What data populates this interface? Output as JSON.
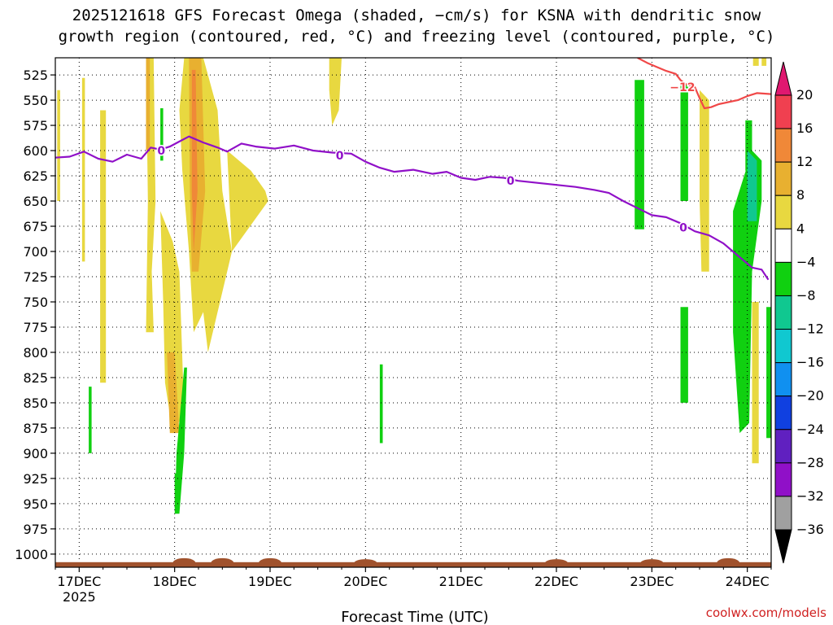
{
  "title": {
    "line1": "2025121618 GFS Forecast Omega (shaded, −cm/s) for KSNA with dendritic snow",
    "line2": "growth region (contoured, red, °C) and freezing level (contoured, purple, °C)"
  },
  "credit": "coolwx.com/models",
  "chart_data": {
    "type": "heatmap",
    "xlabel": "Forecast Time (UTC)",
    "ylabel": "",
    "x_ticks": [
      {
        "value": 0,
        "label": "17DEC",
        "sublabel": "2025"
      },
      {
        "value": 1,
        "label": "18DEC",
        "sublabel": ""
      },
      {
        "value": 2,
        "label": "19DEC",
        "sublabel": ""
      },
      {
        "value": 3,
        "label": "20DEC",
        "sublabel": ""
      },
      {
        "value": 4,
        "label": "21DEC",
        "sublabel": ""
      },
      {
        "value": 5,
        "label": "22DEC",
        "sublabel": ""
      },
      {
        "value": 6,
        "label": "23DEC",
        "sublabel": ""
      },
      {
        "value": 7,
        "label": "24DEC",
        "sublabel": ""
      }
    ],
    "x_range_days": [
      -0.25,
      7.25
    ],
    "y_ticks": [
      525,
      550,
      575,
      600,
      625,
      650,
      675,
      700,
      725,
      750,
      775,
      800,
      825,
      850,
      875,
      900,
      925,
      950,
      975,
      1000
    ],
    "y_range_hpa": [
      508,
      1013
    ],
    "grid": true,
    "colorbar": {
      "labels": [
        "20",
        "16",
        "12",
        "8",
        "4",
        "−4",
        "−8",
        "−12",
        "−16",
        "−20",
        "−24",
        "−28",
        "−32",
        "−36"
      ],
      "colors": [
        "#f04050",
        "#f08838",
        "#e8b030",
        "#e8d840",
        "#ffffff",
        "#10d010",
        "#10c890",
        "#10c8d0",
        "#1090f0",
        "#1040e0",
        "#6020c0",
        "#9010c8",
        "#a0a0a0"
      ],
      "top_arrow_color": "#e01870",
      "bottom_arrow_color": "#000000"
    },
    "freezing_level": {
      "label": "0",
      "color": "#9010c8",
      "points": [
        [
          -0.25,
          607
        ],
        [
          -0.1,
          606
        ],
        [
          0.05,
          601
        ],
        [
          0.2,
          608
        ],
        [
          0.35,
          611
        ],
        [
          0.5,
          604
        ],
        [
          0.65,
          608
        ],
        [
          0.75,
          597
        ],
        [
          0.85,
          599
        ],
        [
          0.95,
          596
        ],
        [
          1.05,
          591
        ],
        [
          1.15,
          586
        ],
        [
          1.3,
          592
        ],
        [
          1.45,
          597
        ],
        [
          1.55,
          601
        ],
        [
          1.7,
          593
        ],
        [
          1.85,
          596
        ],
        [
          2.05,
          598
        ],
        [
          2.25,
          595
        ],
        [
          2.45,
          600
        ],
        [
          2.65,
          602
        ],
        [
          2.85,
          603
        ],
        [
          3.0,
          611
        ],
        [
          3.15,
          617
        ],
        [
          3.3,
          621
        ],
        [
          3.5,
          619
        ],
        [
          3.7,
          623
        ],
        [
          3.85,
          621
        ],
        [
          4.0,
          627
        ],
        [
          4.15,
          629
        ],
        [
          4.3,
          626
        ],
        [
          4.45,
          627
        ],
        [
          4.6,
          630
        ],
        [
          4.8,
          632
        ],
        [
          5.0,
          634
        ],
        [
          5.2,
          636
        ],
        [
          5.4,
          639
        ],
        [
          5.55,
          642
        ],
        [
          5.7,
          650
        ],
        [
          5.85,
          657
        ],
        [
          6.0,
          664
        ],
        [
          6.15,
          666
        ],
        [
          6.3,
          672
        ],
        [
          6.45,
          680
        ],
        [
          6.6,
          684
        ],
        [
          6.75,
          692
        ],
        [
          6.9,
          704
        ],
        [
          7.05,
          716
        ],
        [
          7.15,
          718
        ],
        [
          7.22,
          728
        ]
      ],
      "label_positions": [
        [
          0.86,
          600
        ],
        [
          2.73,
          605
        ],
        [
          4.52,
          630
        ],
        [
          6.33,
          676
        ]
      ]
    },
    "dgz_minus12": {
      "label": "−12",
      "color": "#f04848",
      "points": [
        [
          5.85,
          508
        ],
        [
          5.95,
          513
        ],
        [
          6.05,
          517
        ],
        [
          6.15,
          521
        ],
        [
          6.25,
          524
        ],
        [
          6.3,
          530
        ],
        [
          6.35,
          534
        ],
        [
          6.45,
          537
        ],
        [
          6.5,
          548
        ],
        [
          6.55,
          558
        ],
        [
          6.62,
          557
        ],
        [
          6.7,
          554
        ],
        [
          6.8,
          552
        ],
        [
          6.9,
          550
        ],
        [
          7.0,
          546
        ],
        [
          7.1,
          543
        ],
        [
          7.25,
          544
        ]
      ],
      "label_positions": [
        [
          6.32,
          537
        ]
      ]
    },
    "omega_regions": [
      {
        "value": 6,
        "poly": [
          [
            -0.23,
            540
          ],
          [
            -0.2,
            540
          ],
          [
            -0.2,
            650
          ],
          [
            -0.23,
            650
          ]
        ]
      },
      {
        "value": 6,
        "poly": [
          [
            0.03,
            528
          ],
          [
            0.06,
            528
          ],
          [
            0.06,
            710
          ],
          [
            0.03,
            710
          ]
        ]
      },
      {
        "value": 6,
        "poly": [
          [
            0.22,
            560
          ],
          [
            0.28,
            560
          ],
          [
            0.28,
            830
          ],
          [
            0.22,
            830
          ]
        ]
      },
      {
        "value": 6,
        "poly": [
          [
            0.7,
            508
          ],
          [
            0.78,
            508
          ],
          [
            0.8,
            650
          ],
          [
            0.76,
            720
          ],
          [
            0.78,
            780
          ],
          [
            0.7,
            780
          ],
          [
            0.72,
            650
          ]
        ]
      },
      {
        "value": 6,
        "poly": [
          [
            0.85,
            660
          ],
          [
            0.98,
            690
          ],
          [
            1.05,
            720
          ],
          [
            1.1,
            860
          ],
          [
            0.98,
            880
          ],
          [
            0.9,
            830
          ],
          [
            0.88,
            750
          ]
        ]
      },
      {
        "value": 6,
        "poly": [
          [
            1.1,
            508
          ],
          [
            1.3,
            508
          ],
          [
            1.45,
            560
          ],
          [
            1.5,
            640
          ],
          [
            1.6,
            700
          ],
          [
            1.45,
            760
          ],
          [
            1.35,
            800
          ],
          [
            1.3,
            760
          ],
          [
            1.2,
            780
          ],
          [
            1.15,
            700
          ],
          [
            1.08,
            620
          ],
          [
            1.05,
            560
          ]
        ]
      },
      {
        "value": 6,
        "poly": [
          [
            1.55,
            600
          ],
          [
            1.8,
            620
          ],
          [
            1.95,
            640
          ],
          [
            1.98,
            650
          ],
          [
            1.6,
            700
          ]
        ]
      },
      {
        "value": 6,
        "poly": [
          [
            2.62,
            508
          ],
          [
            2.75,
            508
          ],
          [
            2.72,
            560
          ],
          [
            2.65,
            575
          ],
          [
            2.62,
            540
          ]
        ]
      },
      {
        "value": 6,
        "poly": [
          [
            6.5,
            540
          ],
          [
            6.6,
            550
          ],
          [
            6.6,
            720
          ],
          [
            6.52,
            720
          ],
          [
            6.5,
            650
          ]
        ]
      },
      {
        "value": 6,
        "poly": [
          [
            7.06,
            508
          ],
          [
            7.12,
            508
          ],
          [
            7.12,
            516
          ],
          [
            7.06,
            516
          ]
        ]
      },
      {
        "value": 6,
        "poly": [
          [
            7.15,
            508
          ],
          [
            7.2,
            508
          ],
          [
            7.2,
            516
          ],
          [
            7.15,
            516
          ]
        ]
      },
      {
        "value": 6,
        "poly": [
          [
            7.05,
            750
          ],
          [
            7.12,
            750
          ],
          [
            7.12,
            910
          ],
          [
            7.05,
            910
          ]
        ]
      },
      {
        "value": 10,
        "poly": [
          [
            1.15,
            508
          ],
          [
            1.28,
            508
          ],
          [
            1.32,
            640
          ],
          [
            1.25,
            720
          ],
          [
            1.18,
            720
          ],
          [
            1.16,
            640
          ]
        ]
      },
      {
        "value": 10,
        "poly": [
          [
            0.7,
            508
          ],
          [
            0.74,
            508
          ],
          [
            0.74,
            600
          ],
          [
            0.7,
            600
          ]
        ]
      },
      {
        "value": 10,
        "poly": [
          [
            0.92,
            800
          ],
          [
            1.0,
            800
          ],
          [
            1.05,
            880
          ],
          [
            0.95,
            880
          ]
        ]
      },
      {
        "value": 14,
        "poly": [
          [
            1.18,
            520
          ],
          [
            1.22,
            520
          ],
          [
            1.24,
            640
          ],
          [
            1.2,
            700
          ],
          [
            1.18,
            640
          ]
        ]
      },
      {
        "value": -6,
        "poly": [
          [
            0.85,
            558
          ],
          [
            0.88,
            558
          ],
          [
            0.88,
            610
          ],
          [
            0.85,
            610
          ]
        ]
      },
      {
        "value": -6,
        "poly": [
          [
            0.1,
            834
          ],
          [
            0.13,
            834
          ],
          [
            0.13,
            900
          ],
          [
            0.1,
            900
          ]
        ]
      },
      {
        "value": -6,
        "poly": [
          [
            3.15,
            812
          ],
          [
            3.18,
            812
          ],
          [
            3.18,
            890
          ],
          [
            3.15,
            890
          ]
        ]
      },
      {
        "value": -6,
        "poly": [
          [
            1.1,
            815
          ],
          [
            1.13,
            815
          ],
          [
            1.1,
            900
          ],
          [
            1.05,
            960
          ],
          [
            1.0,
            960
          ],
          [
            1.02,
            900
          ]
        ]
      },
      {
        "value": -6,
        "poly": [
          [
            1.0,
            920
          ],
          [
            1.03,
            920
          ],
          [
            1.03,
            955
          ],
          [
            1.0,
            955
          ]
        ]
      },
      {
        "value": -6,
        "poly": [
          [
            5.82,
            530
          ],
          [
            5.92,
            530
          ],
          [
            5.92,
            678
          ],
          [
            5.82,
            678
          ]
        ]
      },
      {
        "value": -6,
        "poly": [
          [
            6.3,
            535
          ],
          [
            6.38,
            535
          ],
          [
            6.38,
            650
          ],
          [
            6.3,
            650
          ]
        ]
      },
      {
        "value": -6,
        "poly": [
          [
            6.3,
            755
          ],
          [
            6.38,
            755
          ],
          [
            6.38,
            850
          ],
          [
            6.3,
            850
          ]
        ]
      },
      {
        "value": -6,
        "poly": [
          [
            6.85,
            660
          ],
          [
            7.05,
            600
          ],
          [
            7.15,
            610
          ],
          [
            7.15,
            650
          ],
          [
            7.05,
            720
          ],
          [
            7.02,
            870
          ],
          [
            6.92,
            880
          ],
          [
            6.85,
            780
          ]
        ]
      },
      {
        "value": -6,
        "poly": [
          [
            6.98,
            570
          ],
          [
            7.05,
            570
          ],
          [
            7.05,
            620
          ],
          [
            6.98,
            620
          ]
        ]
      },
      {
        "value": -6,
        "poly": [
          [
            7.2,
            755
          ],
          [
            7.25,
            755
          ],
          [
            7.25,
            885
          ],
          [
            7.2,
            885
          ]
        ]
      },
      {
        "value": -10,
        "poly": [
          [
            7.0,
            600
          ],
          [
            7.1,
            610
          ],
          [
            7.1,
            670
          ],
          [
            7.0,
            670
          ]
        ]
      }
    ],
    "terrain": {
      "color": "#a0522d",
      "base_hpa": 1013,
      "top_hpa": 1008,
      "bumps": [
        [
          1.1,
          1004
        ],
        [
          1.5,
          1004
        ],
        [
          2.0,
          1004
        ],
        [
          3.0,
          1005
        ],
        [
          5.0,
          1005
        ],
        [
          6.0,
          1005
        ],
        [
          6.8,
          1004
        ]
      ]
    }
  }
}
